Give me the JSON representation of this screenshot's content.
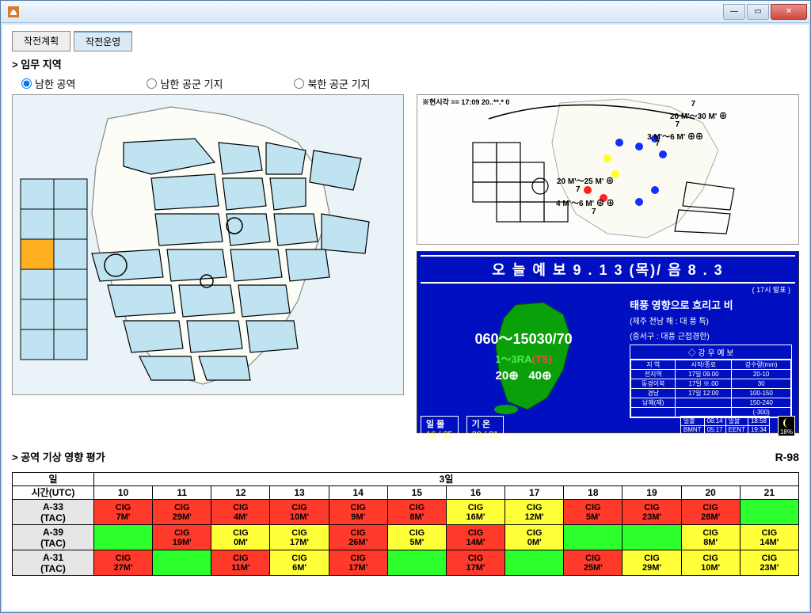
{
  "window": {
    "title": ""
  },
  "tabs": {
    "plan": "작전계획",
    "ops": "작전운영",
    "active": "ops"
  },
  "section_mission": "> 임무 지역",
  "radios": {
    "r1": "남한 공역",
    "r2": "남한 공군 기지",
    "r3": "북한 공군 기지",
    "selected": "r1"
  },
  "right_top_annotations": {
    "timestamp": "※현시각 == 17:09  20..**.*  0",
    "a1": "7",
    "a2": "20 M'～30 M' ⊕",
    "a3": "7",
    "a4": "3 M'～6 M' ⊕⊕",
    "a5": "7",
    "a6": "20 M'～25 M' ⊕",
    "a7": "7",
    "a8": "4 M'～6 M' ⊕ ⊕",
    "a9": "7"
  },
  "forecast": {
    "title": "오 늘  예 보 9 . 1 3 (목)/ 음  8 . 3",
    "subnote": "( 17시 발표 )",
    "big_line": "060～15030/70",
    "mid_green": "1～3RA",
    "mid_red": "(TS)",
    "val_left": "20⊕",
    "val_right": "40⊕",
    "info_hdr": "태풍 영향으로 흐리고 비",
    "info_sub1": "(제주 전남 해 : 대 풍 특)",
    "info_sub2": "(중서구 : 대풍 근접경한)",
    "info_box_title": "◇ 강 우 예 보",
    "info_cols": [
      "지 역",
      "시작/종료",
      "강수량(mm)"
    ],
    "info_rows": [
      [
        "전지역",
        "17일 09.00",
        "20-10"
      ],
      [
        "동경이북",
        "17일 ※.00",
        "30"
      ],
      [
        "경남",
        "17일 12:00",
        "100-150"
      ],
      [
        "남해(제)",
        "",
        "150-240"
      ],
      [
        "",
        "",
        "(-300)"
      ]
    ],
    "footer_left_label": "일 몰",
    "footer_left_val": "16 / 25",
    "footer_right_label": "기 온",
    "footer_right_val": "20 / 21",
    "sun_table": [
      [
        "일출",
        "06:14",
        "일몰",
        "18:58"
      ],
      [
        "BMNT",
        "05:17",
        "EENT",
        "19:34"
      ],
      [
        "월출",
        "10:51",
        "월몰",
        "20:47"
      ]
    ],
    "moon_pct": "18%"
  },
  "colors": {
    "red": "#ff3a2a",
    "yellow": "#ffff3a",
    "green": "#2cff2c",
    "forecast_bg": "#0010c0",
    "map_bg": "#e9f3f8",
    "highlight_cell": "#ffb020"
  },
  "assessment": {
    "title": "> 공역 기상 영향 평가",
    "code": "R-98",
    "day_label": "일",
    "time_label": "시간(UTC)",
    "date_label": "3일",
    "hours": [
      "10",
      "11",
      "12",
      "13",
      "14",
      "15",
      "16",
      "17",
      "18",
      "19",
      "20",
      "21"
    ],
    "rows": [
      {
        "label1": "A-33",
        "label2": "(TAC)",
        "cells": [
          {
            "t": "CIG",
            "b": "7M'",
            "c": "red"
          },
          {
            "t": "CIG",
            "b": "29M'",
            "c": "red"
          },
          {
            "t": "CIG",
            "b": "4M'",
            "c": "red"
          },
          {
            "t": "CIG",
            "b": "10M'",
            "c": "red"
          },
          {
            "t": "CIG",
            "b": "9M'",
            "c": "red"
          },
          {
            "t": "CIG",
            "b": "8M'",
            "c": "red"
          },
          {
            "t": "CIG",
            "b": "16M'",
            "c": "yellow"
          },
          {
            "t": "CIG",
            "b": "12M'",
            "c": "yellow"
          },
          {
            "t": "CIG",
            "b": "5M'",
            "c": "red"
          },
          {
            "t": "CIG",
            "b": "23M'",
            "c": "red"
          },
          {
            "t": "CIG",
            "b": "28M'",
            "c": "red"
          },
          {
            "t": "",
            "b": "",
            "c": "green"
          }
        ]
      },
      {
        "label1": "A-39",
        "label2": "(TAC)",
        "cells": [
          {
            "t": "",
            "b": "",
            "c": "green"
          },
          {
            "t": "CIG",
            "b": "19M'",
            "c": "red"
          },
          {
            "t": "CIG",
            "b": "0M'",
            "c": "yellow"
          },
          {
            "t": "CIG",
            "b": "17M'",
            "c": "yellow"
          },
          {
            "t": "CIG",
            "b": "26M'",
            "c": "red"
          },
          {
            "t": "CIG",
            "b": "5M'",
            "c": "yellow"
          },
          {
            "t": "CIG",
            "b": "14M'",
            "c": "red"
          },
          {
            "t": "CIG",
            "b": "0M'",
            "c": "yellow"
          },
          {
            "t": "",
            "b": "",
            "c": "green"
          },
          {
            "t": "",
            "b": "",
            "c": "green"
          },
          {
            "t": "CIG",
            "b": "8M'",
            "c": "yellow"
          },
          {
            "t": "CIG",
            "b": "14M'",
            "c": "yellow"
          }
        ]
      },
      {
        "label1": "A-31",
        "label2": "(TAC)",
        "cells": [
          {
            "t": "CIG",
            "b": "27M'",
            "c": "red"
          },
          {
            "t": "",
            "b": "",
            "c": "green"
          },
          {
            "t": "CIG",
            "b": "11M'",
            "c": "red"
          },
          {
            "t": "CIG",
            "b": "6M'",
            "c": "yellow"
          },
          {
            "t": "CIG",
            "b": "17M'",
            "c": "red"
          },
          {
            "t": "",
            "b": "",
            "c": "green"
          },
          {
            "t": "CIG",
            "b": "17M'",
            "c": "red"
          },
          {
            "t": "",
            "b": "",
            "c": "green"
          },
          {
            "t": "CIG",
            "b": "25M'",
            "c": "red"
          },
          {
            "t": "CIG",
            "b": "29M'",
            "c": "yellow"
          },
          {
            "t": "CIG",
            "b": "10M'",
            "c": "yellow"
          },
          {
            "t": "CIG",
            "b": "23M'",
            "c": "yellow"
          }
        ]
      }
    ]
  }
}
